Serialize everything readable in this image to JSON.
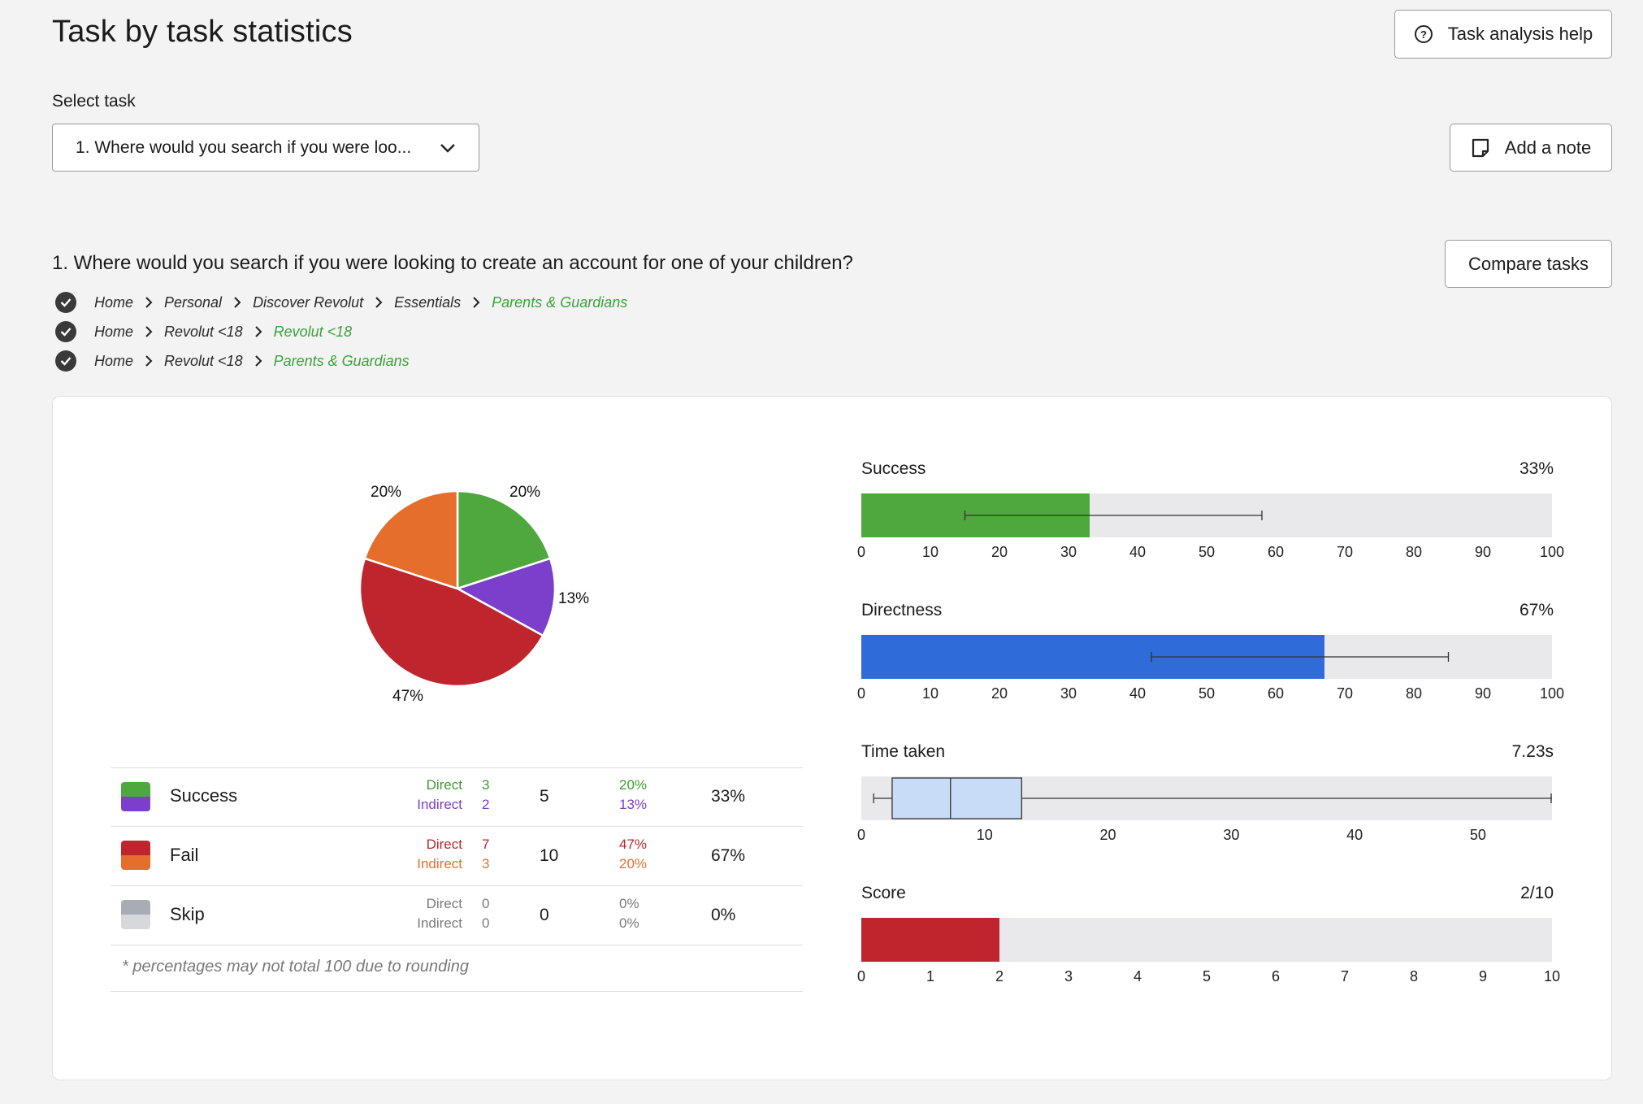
{
  "page": {
    "title": "Task by task statistics",
    "help_button": "Task analysis help",
    "select_label": "Select task",
    "select_value": "1. Where would you search if you were loo...",
    "add_note_button": "Add a note",
    "compare_button": "Compare tasks",
    "task_question": "1. Where would you search if you were looking to create an account for one of your children?"
  },
  "correct_paths": [
    {
      "segments": [
        "Home",
        "Personal",
        "Discover Revolut",
        "Essentials"
      ],
      "target": "Parents & Guardians"
    },
    {
      "segments": [
        "Home",
        "Revolut <18"
      ],
      "target": "Revolut <18"
    },
    {
      "segments": [
        "Home",
        "Revolut <18"
      ],
      "target": "Parents & Guardians"
    }
  ],
  "colors": {
    "success_direct": "#4fa83d",
    "success_indirect": "#7b3fcb",
    "fail_direct": "#be252d",
    "fail_indirect": "#e56e2d",
    "skip_direct": "#a8adb5",
    "skip_indirect": "#d6d8dc",
    "directness": "#2f6bd9",
    "path_target": "#3aa33a"
  },
  "chart_data": [
    {
      "type": "pie",
      "slices": [
        {
          "name": "Success direct",
          "value": 20,
          "label": "20%"
        },
        {
          "name": "Success indirect",
          "value": 13,
          "label": "13%"
        },
        {
          "name": "Fail direct",
          "value": 47,
          "label": "47%"
        },
        {
          "name": "Fail indirect",
          "value": 20,
          "label": "20%"
        }
      ]
    },
    {
      "type": "bar",
      "title": "Success",
      "display_value": "33%",
      "value": 33,
      "error_range": [
        15,
        58
      ],
      "xlim": [
        0,
        100
      ],
      "ticks": [
        "0",
        "10",
        "20",
        "30",
        "40",
        "50",
        "60",
        "70",
        "80",
        "90",
        "100"
      ]
    },
    {
      "type": "bar",
      "title": "Directness",
      "display_value": "67%",
      "value": 67,
      "error_range": [
        42,
        85
      ],
      "xlim": [
        0,
        100
      ],
      "ticks": [
        "0",
        "10",
        "20",
        "30",
        "40",
        "50",
        "60",
        "70",
        "80",
        "90",
        "100"
      ]
    },
    {
      "type": "box",
      "title": "Time taken",
      "display_value": "7.23s",
      "whisker_low": 1,
      "q1": 2.5,
      "median": 7.23,
      "q3": 13,
      "whisker_high": 56,
      "xlim": [
        0,
        56
      ],
      "ticks": [
        "0",
        "10",
        "20",
        "30",
        "40",
        "50"
      ]
    },
    {
      "type": "bar",
      "title": "Score",
      "display_value": "2/10",
      "value": 2,
      "xlim": [
        0,
        10
      ],
      "ticks": [
        "0",
        "1",
        "2",
        "3",
        "4",
        "5",
        "6",
        "7",
        "8",
        "9",
        "10"
      ]
    }
  ],
  "table": {
    "rows": [
      {
        "name": "Success",
        "direct_label": "Direct",
        "indirect_label": "Indirect",
        "direct_count": "3",
        "indirect_count": "2",
        "total": "5",
        "direct_pct": "20%",
        "indirect_pct": "13%",
        "total_pct": "33%"
      },
      {
        "name": "Fail",
        "direct_label": "Direct",
        "indirect_label": "Indirect",
        "direct_count": "7",
        "indirect_count": "3",
        "total": "10",
        "direct_pct": "47%",
        "indirect_pct": "20%",
        "total_pct": "67%"
      },
      {
        "name": "Skip",
        "direct_label": "Direct",
        "indirect_label": "Indirect",
        "direct_count": "0",
        "indirect_count": "0",
        "total": "0",
        "direct_pct": "0%",
        "indirect_pct": "0%",
        "total_pct": "0%"
      }
    ],
    "footnote": "* percentages may not total 100 due to rounding"
  }
}
